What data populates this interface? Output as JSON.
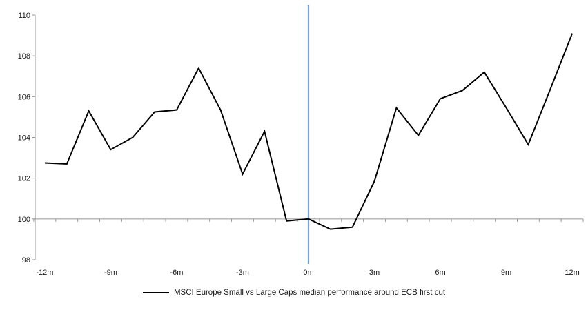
{
  "chart_data": {
    "type": "line",
    "title": "",
    "legend": "MSCI Europe Small vs Large Caps median performance around ECB first cut",
    "legend_position": "bottom-center",
    "x": [
      -12,
      -11,
      -10,
      -9,
      -8,
      -7,
      -6,
      -5,
      -4,
      -3,
      -2,
      -1,
      0,
      1,
      2,
      3,
      4,
      5,
      6,
      7,
      8,
      9,
      10,
      11,
      12
    ],
    "series": [
      {
        "name": "MSCI Europe Small vs Large Caps median performance around ECB first cut",
        "color": "#000000",
        "values": [
          102.75,
          102.7,
          105.3,
          103.4,
          104.0,
          105.25,
          105.35,
          107.4,
          105.35,
          102.2,
          104.3,
          99.9,
          100.0,
          99.5,
          99.6,
          101.85,
          105.45,
          104.1,
          105.9,
          106.3,
          107.2,
          105.45,
          103.65,
          106.35,
          109.1
        ]
      }
    ],
    "xlim": [
      -12.5,
      12.5
    ],
    "ylim": [
      98,
      110
    ],
    "y_ticks": [
      98,
      100,
      102,
      104,
      106,
      108,
      110
    ],
    "y_tick_labels": [
      "98",
      "100",
      "102",
      "104",
      "106",
      "108",
      "110"
    ],
    "x_label_months": [
      -12,
      -9,
      -6,
      -3,
      0,
      3,
      6,
      9,
      12
    ],
    "x_tick_labels": [
      "-12m",
      "-9m",
      "-6m",
      "-3m",
      "0m",
      "3m",
      "6m",
      "9m",
      "12m"
    ],
    "category_axis_position": 100,
    "event_line": {
      "x": 0,
      "color": "#78A4CF"
    },
    "axis_color": "#969696",
    "text_color": "#1a1a1a",
    "grid": false,
    "xlabel": "",
    "ylabel": ""
  }
}
